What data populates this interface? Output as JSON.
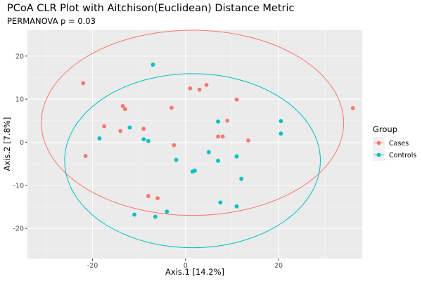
{
  "chart_data": {
    "type": "scatter",
    "title": "PCoA CLR Plot with Aitchison(Euclidean) Distance Metric",
    "subtitle": "PERMANOVA p = 0.03",
    "xlabel": "Axis.1  [14.2%]",
    "ylabel": "Axis.2  [7.8%]",
    "xlim": [
      -34,
      38
    ],
    "ylim": [
      -27,
      26
    ],
    "xticks": [
      -20,
      0,
      20
    ],
    "yticks": [
      -20,
      -10,
      0,
      10,
      20
    ],
    "xtick_labels": [
      "-20",
      "0",
      "20"
    ],
    "ytick_labels": [
      "-20",
      "-10",
      "0",
      "10",
      "20"
    ],
    "grid": true,
    "legend_title": "Group",
    "legend_position": "right",
    "series": [
      {
        "name": "Cases",
        "color": "#F8766D",
        "points": [
          [
            -22,
            13.7
          ],
          [
            -21.5,
            -3.2
          ],
          [
            -17.5,
            3.7
          ],
          [
            -14,
            2.6
          ],
          [
            -13.5,
            8.4
          ],
          [
            -13,
            7.7
          ],
          [
            -9,
            3.1
          ],
          [
            -8,
            -12.5
          ],
          [
            -6,
            -13
          ],
          [
            -3,
            8
          ],
          [
            -2.5,
            -0.7
          ],
          [
            1,
            12.5
          ],
          [
            3,
            12.2
          ],
          [
            4.5,
            13.3
          ],
          [
            7,
            1.3
          ],
          [
            8,
            1.3
          ],
          [
            9,
            5
          ],
          [
            11,
            9.9
          ],
          [
            13.5,
            0.4
          ],
          [
            36,
            7.9
          ]
        ]
      },
      {
        "name": "Controls",
        "color": "#00BFC4",
        "points": [
          [
            -7,
            18
          ],
          [
            -18.5,
            0.9
          ],
          [
            -12,
            3.4
          ],
          [
            -11,
            -16.8
          ],
          [
            -9,
            0.7
          ],
          [
            -8,
            0.3
          ],
          [
            -6.5,
            -17.3
          ],
          [
            -4,
            -16.1
          ],
          [
            -2,
            -4.1
          ],
          [
            1.5,
            -6.8
          ],
          [
            2,
            -6.6
          ],
          [
            5,
            -2.3
          ],
          [
            7,
            -4.3
          ],
          [
            7,
            4.8
          ],
          [
            7.5,
            -14
          ],
          [
            11,
            -3.3
          ],
          [
            11,
            -14.9
          ],
          [
            12,
            -8.5
          ],
          [
            20.5,
            4.9
          ],
          [
            20.5,
            2
          ]
        ]
      }
    ],
    "ellipses": [
      {
        "group": "Cases",
        "color": "#F8766D",
        "center": [
          1.5,
          4.5
        ],
        "rx": 32.5,
        "ry": 21.5
      },
      {
        "group": "Controls",
        "color": "#00BFC4",
        "center": [
          1.5,
          -4.3
        ],
        "rx": 27.5,
        "ry": 20.2
      }
    ]
  }
}
